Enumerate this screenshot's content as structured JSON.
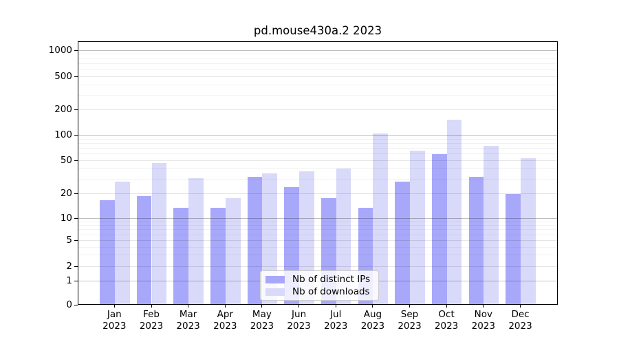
{
  "chart": {
    "title": "pd.mouse430a.2 2023"
  },
  "chart_data": {
    "type": "bar",
    "title": "pd.mouse430a.2 2023",
    "months": [
      "Jan",
      "Feb",
      "Mar",
      "Apr",
      "May",
      "Jun",
      "Jul",
      "Aug",
      "Sep",
      "Oct",
      "Nov",
      "Dec"
    ],
    "year": "2023",
    "series": [
      {
        "name": "Nb of distinct IPs",
        "color": "#a8a8fa",
        "values": [
          16,
          18,
          13,
          13,
          31,
          23,
          17,
          13,
          27,
          58,
          31,
          19
        ]
      },
      {
        "name": "Nb of downloads",
        "color": "#d9d9fa",
        "values": [
          27,
          45,
          30,
          17,
          34,
          36,
          39,
          102,
          64,
          150,
          72,
          52
        ]
      }
    ],
    "y_ticks": [
      0,
      1,
      2,
      5,
      10,
      20,
      50,
      100,
      200,
      500,
      1000
    ],
    "y_scale": "symlog",
    "ylim": [
      0,
      1270
    ],
    "grid": true,
    "legend_position": "lower center",
    "background_color": "#ffffff",
    "spine_color": "#000000"
  }
}
